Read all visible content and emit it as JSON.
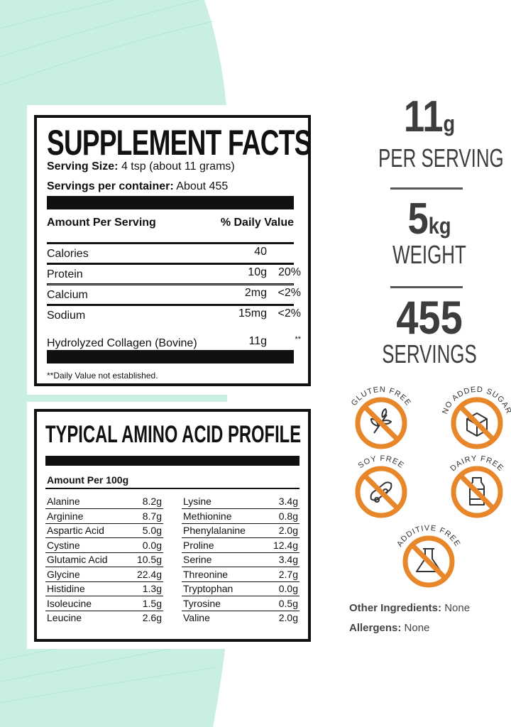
{
  "supplement_facts": {
    "title": "SUPPLEMENT FACTS",
    "serving_size_label": "Serving Size:",
    "serving_size_value": "4 tsp (about 11 grams)",
    "servings_label": "Servings per container:",
    "servings_value": "About 455",
    "amount_header": "Amount Per Serving",
    "dv_header": "% Daily Value",
    "rows": [
      {
        "name": "Calories",
        "amount": "40",
        "dv": ""
      },
      {
        "name": "Protein",
        "amount": "10g",
        "dv": "20%"
      },
      {
        "name": "Calcium",
        "amount": "2mg",
        "dv": "<2%"
      },
      {
        "name": "Sodium",
        "amount": "15mg",
        "dv": "<2%"
      },
      {
        "name": "Hydrolyzed Collagen (Bovine)",
        "amount": "11g",
        "dv": "**"
      }
    ],
    "footnote": "**Daily Value not established."
  },
  "amino_profile": {
    "title": "TYPICAL AMINO ACID PROFILE",
    "header": "Amount Per 100g",
    "left": [
      {
        "name": "Alanine",
        "value": "8.2g"
      },
      {
        "name": "Arginine",
        "value": "8.7g"
      },
      {
        "name": "Aspartic Acid",
        "value": "5.0g"
      },
      {
        "name": "Cystine",
        "value": "0.0g"
      },
      {
        "name": "Glutamic Acid",
        "value": "10.5g"
      },
      {
        "name": "Glycine",
        "value": "22.4g"
      },
      {
        "name": "Histidine",
        "value": "1.3g"
      },
      {
        "name": "Isoleucine",
        "value": "1.5g"
      },
      {
        "name": "Leucine",
        "value": "2.6g"
      }
    ],
    "right": [
      {
        "name": "Lysine",
        "value": "3.4g"
      },
      {
        "name": "Methionine",
        "value": "0.8g"
      },
      {
        "name": "Phenylalanine",
        "value": "2.0g"
      },
      {
        "name": "Proline",
        "value": "12.4g"
      },
      {
        "name": "Serine",
        "value": "3.4g"
      },
      {
        "name": "Threonine",
        "value": "2.7g"
      },
      {
        "name": "Tryptophan",
        "value": "0.0g"
      },
      {
        "name": "Tyrosine",
        "value": "0.5g"
      },
      {
        "name": "Valine",
        "value": "2.0g"
      }
    ]
  },
  "stats": {
    "serving_num": "11",
    "serving_unit": "g",
    "serving_label": "PER SERVING",
    "weight_num": "5",
    "weight_unit": "kg",
    "weight_label": "WEIGHT",
    "servings_num": "455",
    "servings_label": "SERVINGS"
  },
  "badges": [
    {
      "label": "GLUTEN FREE",
      "icon": "wheat-icon"
    },
    {
      "label": "NO ADDED SUGAR",
      "icon": "sugar-cube-icon"
    },
    {
      "label": "SOY FREE",
      "icon": "soybean-icon"
    },
    {
      "label": "DAIRY FREE",
      "icon": "milk-bottle-icon"
    },
    {
      "label": "ADDITIVE FREE",
      "icon": "flask-icon"
    }
  ],
  "other_ingredients_label": "Other Ingredients:",
  "other_ingredients_value": "None",
  "allergens_label": "Allergens:",
  "allergens_value": "None",
  "colors": {
    "mint": "#c9efe0",
    "badge_orange": "#e8872a",
    "stat_grey": "#3d3d3d"
  }
}
